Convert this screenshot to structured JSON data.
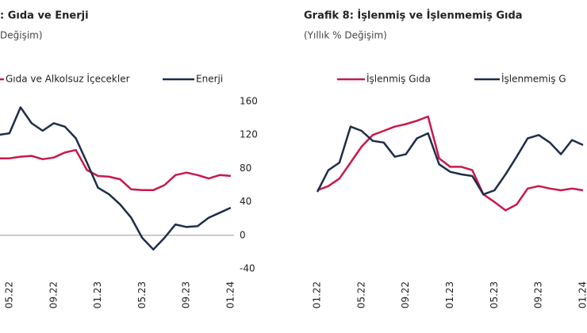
{
  "chart_data": [
    {
      "type": "line",
      "title": ": Gıda ve Enerji",
      "subtitle": "Değişim)",
      "categories": [
        null,
        "05.22",
        null,
        null,
        null,
        "09.22",
        null,
        null,
        null,
        "01.23",
        null,
        null,
        null,
        "05.23",
        null,
        null,
        null,
        "09.23",
        null,
        null,
        null,
        "01.24"
      ],
      "series": [
        {
          "name": "Gıda ve Alkolsuz İçecekler",
          "color": "#c8194b",
          "values": [
            92,
            92,
            94,
            95,
            91,
            93,
            99,
            102,
            78,
            71,
            70,
            67,
            55,
            54,
            54,
            60,
            72,
            75,
            72,
            68,
            72,
            71
          ]
        },
        {
          "name": "Enerji",
          "color": "#1f2d4a",
          "values": [
            120,
            122,
            153,
            134,
            125,
            134,
            130,
            116,
            87,
            57,
            49,
            37,
            21,
            -3,
            -17,
            -3,
            13,
            10,
            11,
            21,
            27,
            33
          ]
        }
      ],
      "ylim": [
        -40,
        160
      ],
      "yticks": [
        -40,
        0,
        40,
        80,
        120,
        160
      ]
    },
    {
      "type": "line",
      "title": "Grafik 8: İşlenmiş ve İşlenmemiş Gıda",
      "subtitle": "(Yıllık % Değişim)",
      "categories": [
        "01.22",
        null,
        null,
        null,
        "05.22",
        null,
        null,
        null,
        "09.22",
        null,
        null,
        null,
        "01.23",
        null,
        null,
        null,
        "05.23",
        null,
        null,
        null,
        "09.23",
        null,
        null,
        null,
        "01.24"
      ],
      "series": [
        {
          "name": "İşlenmiş Gıda",
          "color": "#c8194b",
          "values": [
            54,
            59,
            68,
            87,
            106,
            120,
            125,
            130,
            133,
            137,
            142,
            92,
            82,
            82,
            78,
            49,
            40,
            30,
            37,
            56,
            59,
            56,
            54,
            56,
            54
          ]
        },
        {
          "name": "İşlenmemiş G",
          "color": "#1f2d4a",
          "values": [
            52,
            78,
            87,
            130,
            125,
            113,
            111,
            94,
            97,
            116,
            122,
            85,
            76,
            73,
            71,
            49,
            54,
            73,
            94,
            116,
            120,
            111,
            97,
            114,
            108
          ]
        }
      ],
      "ylim": [
        0,
        160
      ]
    }
  ]
}
